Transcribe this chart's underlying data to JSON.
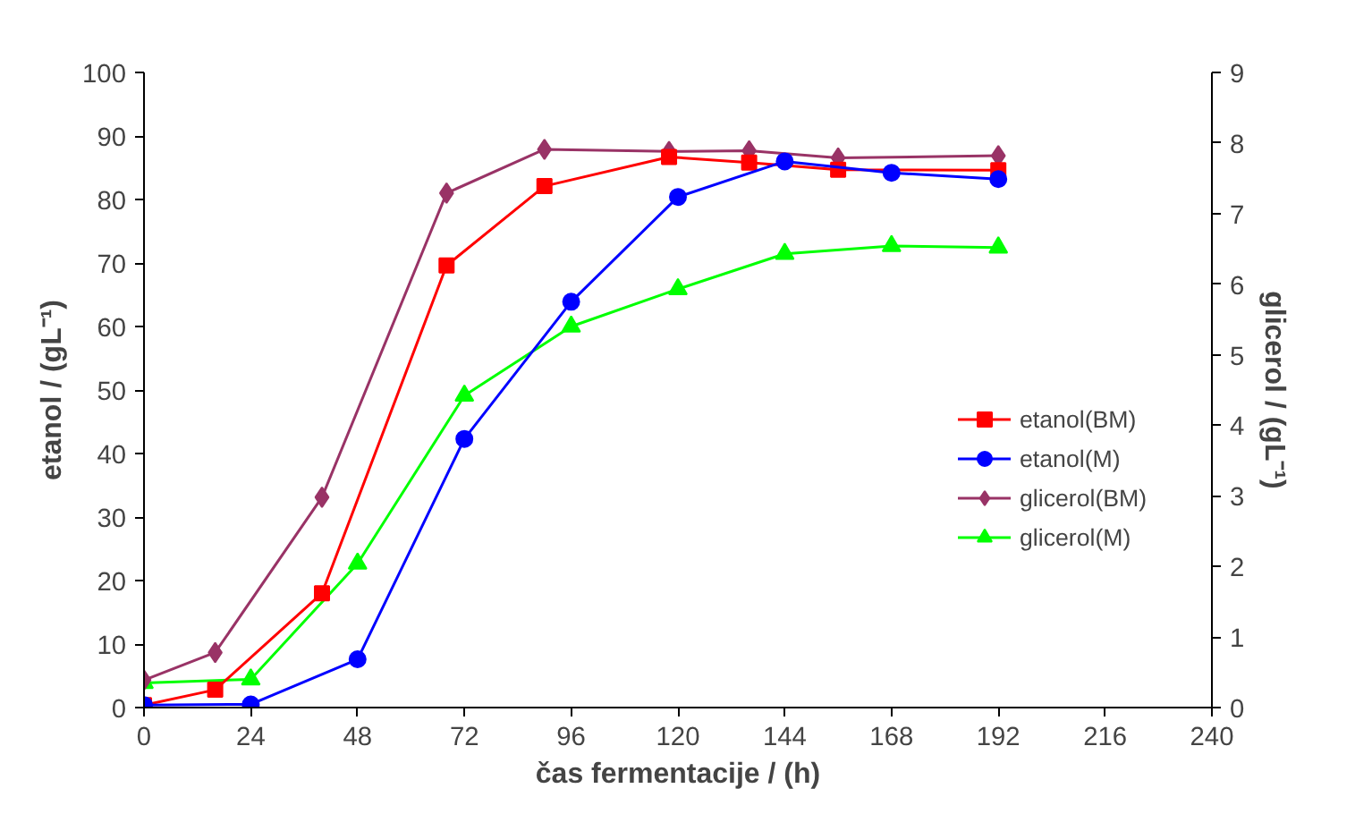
{
  "chart_data": {
    "type": "line",
    "xlabel": "čas fermentacije / (h)",
    "ylabel": "etanol / (gL⁻¹)",
    "y2label": "glicerol / (gL⁻¹)",
    "xlim": [
      0,
      240
    ],
    "xticks": [
      0,
      24,
      48,
      72,
      96,
      120,
      144,
      168,
      192,
      216,
      240
    ],
    "ylim": [
      0,
      100
    ],
    "yticks": [
      0,
      10,
      20,
      30,
      40,
      50,
      60,
      70,
      80,
      90,
      100
    ],
    "y2lim": [
      0,
      9
    ],
    "y2ticks": [
      0,
      1,
      2,
      3,
      4,
      5,
      6,
      7,
      8,
      9
    ],
    "grid": false,
    "legend": "right",
    "line_style": "solid",
    "series": [
      {
        "name": "etanol(BM)",
        "color": "#ff0000",
        "marker": "square",
        "x": [
          0,
          16,
          40,
          68,
          90,
          118,
          136,
          156,
          192
        ],
        "values": [
          0.4,
          2.8,
          18,
          69.6,
          82.1,
          86.7,
          85.8,
          84.7,
          84.6
        ]
      },
      {
        "name": "etanol(M)",
        "color": "#0000ff",
        "marker": "circle",
        "x": [
          0,
          24,
          48,
          72,
          96,
          120,
          144,
          168,
          192
        ],
        "values": [
          0.4,
          0.5,
          7.6,
          42.3,
          63.9,
          80.4,
          86,
          84.2,
          83.2
        ]
      },
      {
        "name": "glicerol(BM)",
        "color": "#993366",
        "marker": "diamond",
        "axis": "y2",
        "x": [
          0,
          16,
          40,
          68,
          90,
          118,
          136,
          156,
          192
        ],
        "values": [
          0.39,
          0.78,
          2.98,
          7.29,
          7.91,
          7.88,
          7.89,
          7.79,
          7.82
        ]
      },
      {
        "name": "glicerol(M)",
        "color": "#00ff00",
        "marker": "triangle",
        "axis": "y2",
        "x": [
          0,
          24,
          48,
          72,
          96,
          120,
          144,
          168,
          192
        ],
        "values": [
          0.35,
          0.4,
          2.04,
          4.42,
          5.4,
          5.93,
          6.43,
          6.54,
          6.52
        ]
      }
    ]
  }
}
